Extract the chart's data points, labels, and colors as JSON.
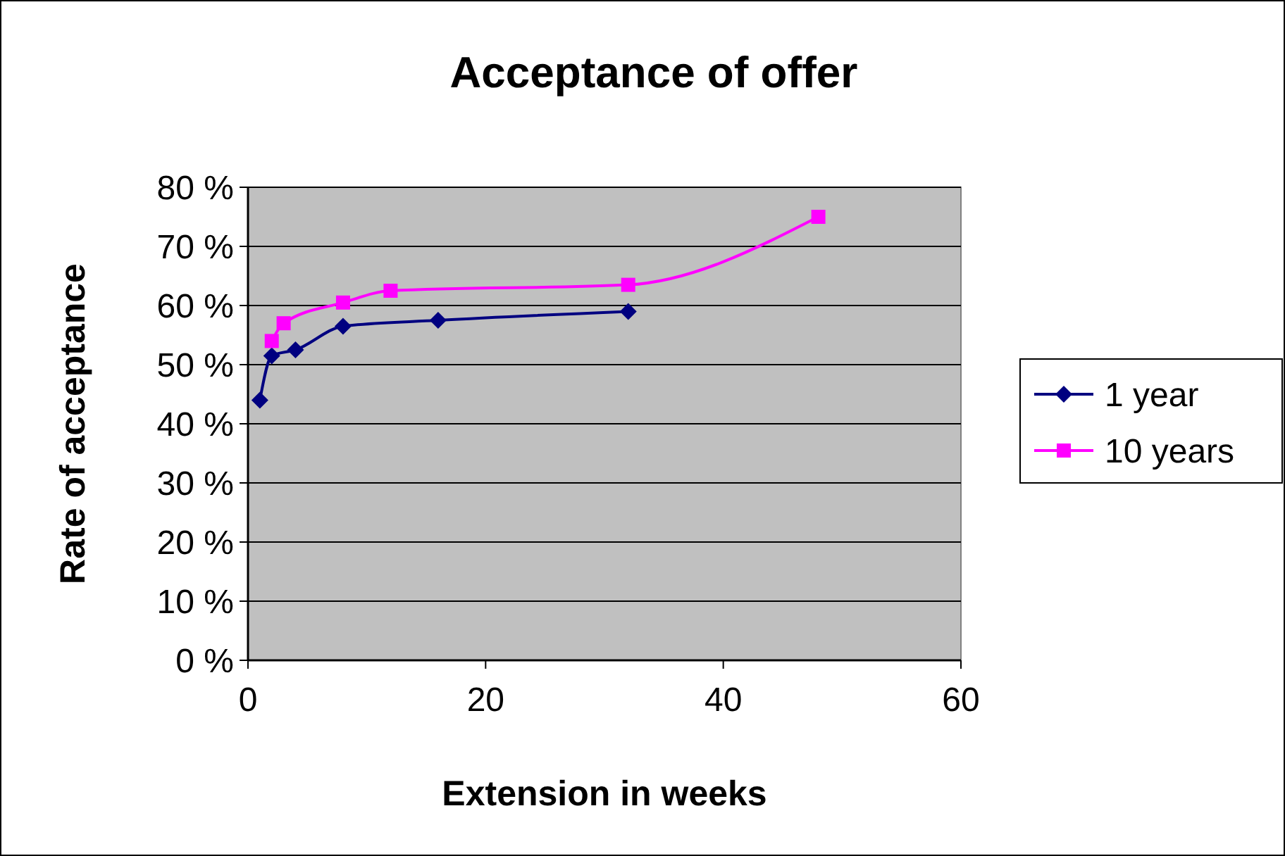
{
  "chart_data": {
    "type": "line",
    "title": "Acceptance of offer",
    "xlabel": "Extension in weeks",
    "ylabel": "Rate of acceptance",
    "xlim": [
      0,
      60
    ],
    "xticks": [
      0,
      20,
      40,
      60
    ],
    "ylim": [
      0,
      80
    ],
    "yticks": [
      {
        "value": 0,
        "label": "0 %"
      },
      {
        "value": 10,
        "label": "10 %"
      },
      {
        "value": 20,
        "label": "20 %"
      },
      {
        "value": 30,
        "label": "30 %"
      },
      {
        "value": 40,
        "label": "40 %"
      },
      {
        "value": 50,
        "label": "50 %"
      },
      {
        "value": 60,
        "label": "60 %"
      },
      {
        "value": 70,
        "label": "70 %"
      },
      {
        "value": 80,
        "label": "80 %"
      }
    ],
    "grid": "y",
    "legend": "right",
    "series": [
      {
        "name": "1 year",
        "color": "#000080",
        "marker": "diamond",
        "x": [
          1,
          2,
          4,
          8,
          16,
          32
        ],
        "values": [
          44,
          51.5,
          52.5,
          56.5,
          57.5,
          59
        ]
      },
      {
        "name": "10 years",
        "color": "#ff00ff",
        "marker": "square",
        "x": [
          2,
          3,
          8,
          12,
          32,
          48
        ],
        "values": [
          54,
          57,
          60.5,
          62.5,
          63.5,
          75
        ]
      }
    ]
  }
}
